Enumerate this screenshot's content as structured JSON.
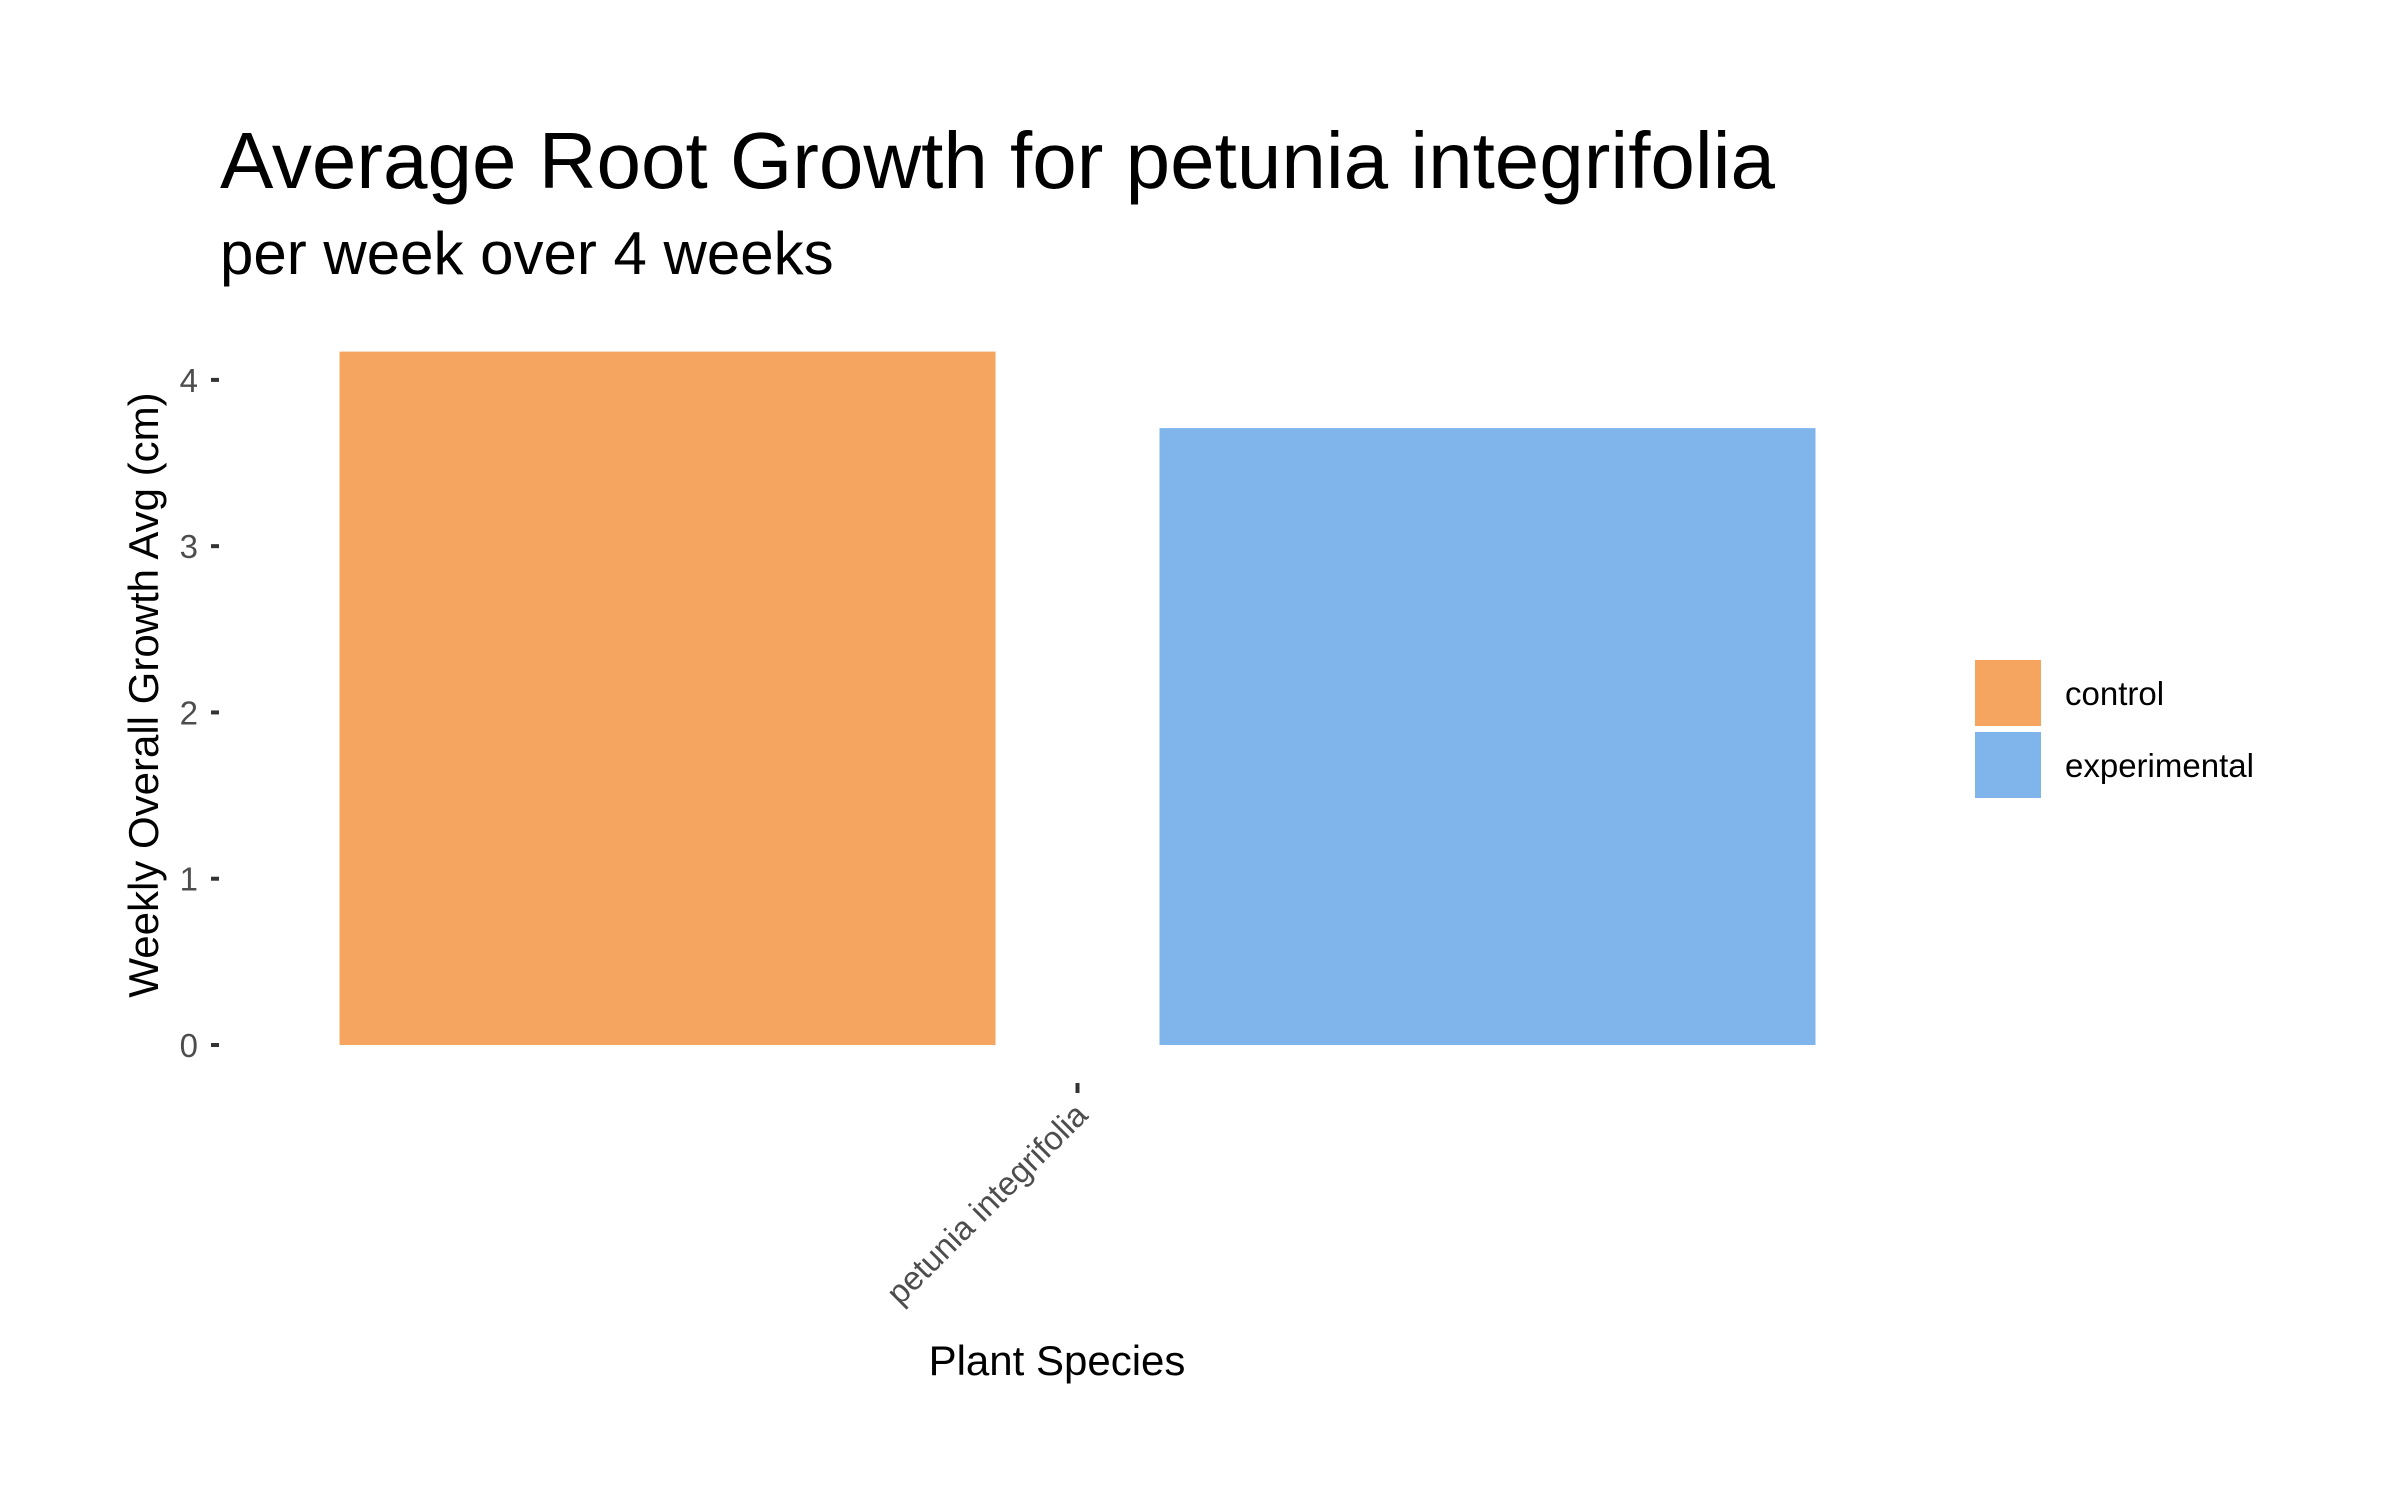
{
  "chart_data": {
    "type": "bar",
    "title": "Average Root Growth for petunia integrifolia",
    "subtitle": "per week over 4 weeks",
    "xlabel": "Plant Species",
    "ylabel": "Weekly Overall Growth Avg (cm)",
    "categories": [
      "petunia integrifolia"
    ],
    "series": [
      {
        "name": "control",
        "color": "#F5A55F",
        "values": [
          4.17
        ]
      },
      {
        "name": "experimental",
        "color": "#7FB5EB",
        "values": [
          3.71
        ]
      }
    ],
    "ylim": [
      0,
      4.3
    ],
    "yticks": [
      0,
      1,
      2,
      3,
      4
    ],
    "grid": false,
    "legend_position": "right"
  }
}
